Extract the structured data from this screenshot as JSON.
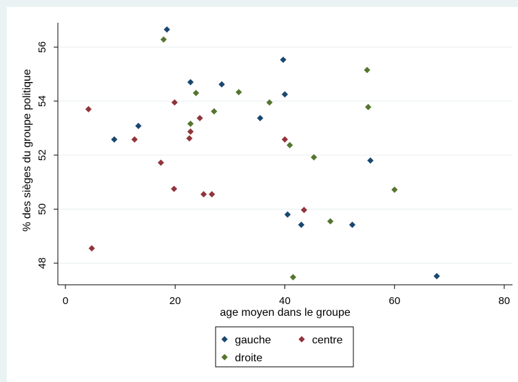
{
  "chart_data": {
    "type": "scatter",
    "title": "",
    "xlabel": "age moyen dans le groupe",
    "ylabel": "% des sièges du groupe politique",
    "xlim": [
      0,
      80
    ],
    "ylim": [
      47.2,
      56.9
    ],
    "xticks": [
      "0",
      "20",
      "40",
      "60",
      "80"
    ],
    "yticks": [
      "48",
      "50",
      "52",
      "54",
      "56"
    ],
    "grid": "horizontal",
    "legend_position": "bottom",
    "series": [
      {
        "name": "gauche",
        "color": "#1a476f",
        "marker": "diamond",
        "points": [
          {
            "x": 18.5,
            "y": 56.65
          },
          {
            "x": 22.8,
            "y": 54.7
          },
          {
            "x": 28.5,
            "y": 54.62
          },
          {
            "x": 39.7,
            "y": 55.53
          },
          {
            "x": 40.0,
            "y": 54.25
          },
          {
            "x": 35.5,
            "y": 53.37
          },
          {
            "x": 13.3,
            "y": 53.08
          },
          {
            "x": 8.9,
            "y": 52.58
          },
          {
            "x": 55.6,
            "y": 51.8
          },
          {
            "x": 40.5,
            "y": 49.8
          },
          {
            "x": 43.0,
            "y": 49.42
          },
          {
            "x": 52.3,
            "y": 49.42
          },
          {
            "x": 67.7,
            "y": 47.52
          }
        ]
      },
      {
        "name": "centre",
        "color": "#90353b",
        "marker": "diamond",
        "points": [
          {
            "x": 4.2,
            "y": 53.7
          },
          {
            "x": 19.9,
            "y": 53.95
          },
          {
            "x": 24.5,
            "y": 53.37
          },
          {
            "x": 22.8,
            "y": 52.87
          },
          {
            "x": 22.6,
            "y": 52.62
          },
          {
            "x": 12.6,
            "y": 52.58
          },
          {
            "x": 17.4,
            "y": 51.72
          },
          {
            "x": 19.8,
            "y": 50.75
          },
          {
            "x": 25.2,
            "y": 50.55
          },
          {
            "x": 26.7,
            "y": 50.55
          },
          {
            "x": 40.0,
            "y": 52.58
          },
          {
            "x": 43.5,
            "y": 49.97
          },
          {
            "x": 4.8,
            "y": 48.55
          }
        ]
      },
      {
        "name": "droite",
        "color": "#55752f",
        "marker": "diamond",
        "points": [
          {
            "x": 17.9,
            "y": 56.28
          },
          {
            "x": 23.8,
            "y": 54.3
          },
          {
            "x": 31.6,
            "y": 54.33
          },
          {
            "x": 37.2,
            "y": 53.95
          },
          {
            "x": 27.1,
            "y": 53.62
          },
          {
            "x": 22.8,
            "y": 53.16
          },
          {
            "x": 55.0,
            "y": 55.15
          },
          {
            "x": 55.2,
            "y": 53.78
          },
          {
            "x": 40.9,
            "y": 52.37
          },
          {
            "x": 45.3,
            "y": 51.92
          },
          {
            "x": 60.0,
            "y": 50.72
          },
          {
            "x": 48.3,
            "y": 49.55
          },
          {
            "x": 41.5,
            "y": 47.48
          }
        ]
      }
    ]
  }
}
